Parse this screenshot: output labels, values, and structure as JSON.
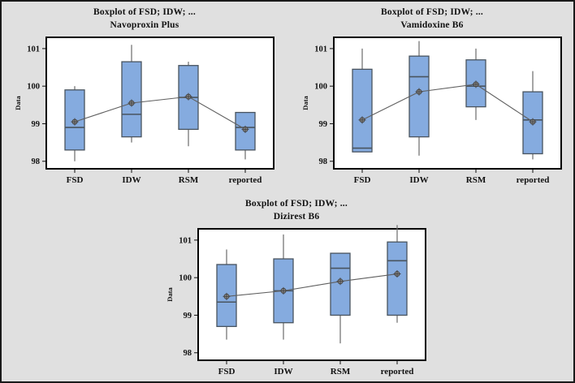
{
  "figure": {
    "background_color": "#e0e0e0",
    "border_color": "#1a1a1a",
    "style": {
      "plot_bg": "#ffffff",
      "plot_border": "#000000",
      "box_fill": "#85abdf",
      "box_stroke": "#49545f",
      "whisker_color": "#6a6a6a",
      "mean_line_color": "#5f5f5f",
      "marker_stroke": "#454545",
      "marker_fill": "#8f8f8f",
      "text_color": "#111111"
    }
  },
  "chart_data": [
    {
      "type": "boxplot",
      "title": "Boxplot of FSD; IDW; ...",
      "subtitle": "Navoproxin Plus",
      "ylabel": "Data",
      "xlabel": "",
      "yticks": [
        98,
        99,
        100,
        101
      ],
      "ylim": [
        97.8,
        101.3
      ],
      "grid": false,
      "legend": "none",
      "categories": [
        "FSD",
        "IDW",
        "RSM",
        "reported"
      ],
      "boxes": [
        {
          "category": "FSD",
          "whisker_low": 98.0,
          "q1": 98.3,
          "median": 98.9,
          "q3": 99.9,
          "whisker_high": 100.0,
          "mean": 99.05
        },
        {
          "category": "IDW",
          "whisker_low": 98.5,
          "q1": 98.65,
          "median": 99.25,
          "q3": 100.65,
          "whisker_high": 101.1,
          "mean": 99.55
        },
        {
          "category": "RSM",
          "whisker_low": 98.4,
          "q1": 98.85,
          "median": 99.7,
          "q3": 100.55,
          "whisker_high": 100.65,
          "mean": 99.72
        },
        {
          "category": "reported",
          "whisker_low": 98.05,
          "q1": 98.3,
          "median": 98.9,
          "q3": 99.3,
          "whisker_high": 99.3,
          "mean": 98.85
        }
      ],
      "mean_connector": [
        99.05,
        99.55,
        99.72,
        98.85
      ]
    },
    {
      "type": "boxplot",
      "title": "Boxplot of FSD; IDW; ...",
      "subtitle": "Vamidoxine B6",
      "ylabel": "Data",
      "xlabel": "",
      "yticks": [
        98,
        99,
        100,
        101
      ],
      "ylim": [
        97.8,
        101.3
      ],
      "grid": false,
      "legend": "none",
      "categories": [
        "FSD",
        "IDW",
        "RSM",
        "reported"
      ],
      "boxes": [
        {
          "category": "FSD",
          "whisker_low": 98.25,
          "q1": 98.25,
          "median": 98.35,
          "q3": 100.45,
          "whisker_high": 101.0,
          "mean": 99.1
        },
        {
          "category": "IDW",
          "whisker_low": 98.15,
          "q1": 98.65,
          "median": 100.25,
          "q3": 100.8,
          "whisker_high": 101.2,
          "mean": 99.85
        },
        {
          "category": "RSM",
          "whisker_low": 99.1,
          "q1": 99.45,
          "median": 100.0,
          "q3": 100.7,
          "whisker_high": 101.0,
          "mean": 100.05
        },
        {
          "category": "reported",
          "whisker_low": 98.05,
          "q1": 98.2,
          "median": 99.1,
          "q3": 99.85,
          "whisker_high": 100.4,
          "mean": 99.05
        }
      ],
      "mean_connector": [
        99.1,
        99.85,
        100.05,
        99.05
      ]
    },
    {
      "type": "boxplot",
      "title": "Boxplot of FSD; IDW; ...",
      "subtitle": "Dizirest B6",
      "ylabel": "Data",
      "xlabel": "",
      "yticks": [
        98,
        99,
        100,
        101
      ],
      "ylim": [
        97.8,
        101.3
      ],
      "grid": false,
      "legend": "none",
      "categories": [
        "FSD",
        "IDW",
        "RSM",
        "reported"
      ],
      "boxes": [
        {
          "category": "FSD",
          "whisker_low": 98.35,
          "q1": 98.7,
          "median": 99.35,
          "q3": 100.35,
          "whisker_high": 100.75,
          "mean": 99.5
        },
        {
          "category": "IDW",
          "whisker_low": 98.35,
          "q1": 98.8,
          "median": 99.65,
          "q3": 100.5,
          "whisker_high": 101.15,
          "mean": 99.65
        },
        {
          "category": "RSM",
          "whisker_low": 98.25,
          "q1": 99.0,
          "median": 100.25,
          "q3": 100.65,
          "whisker_high": 100.65,
          "mean": 99.9
        },
        {
          "category": "reported",
          "whisker_low": 98.8,
          "q1": 99.0,
          "median": 100.45,
          "q3": 100.95,
          "whisker_high": 101.4,
          "mean": 100.1
        }
      ],
      "mean_connector": [
        99.5,
        99.65,
        99.9,
        100.1
      ]
    }
  ]
}
